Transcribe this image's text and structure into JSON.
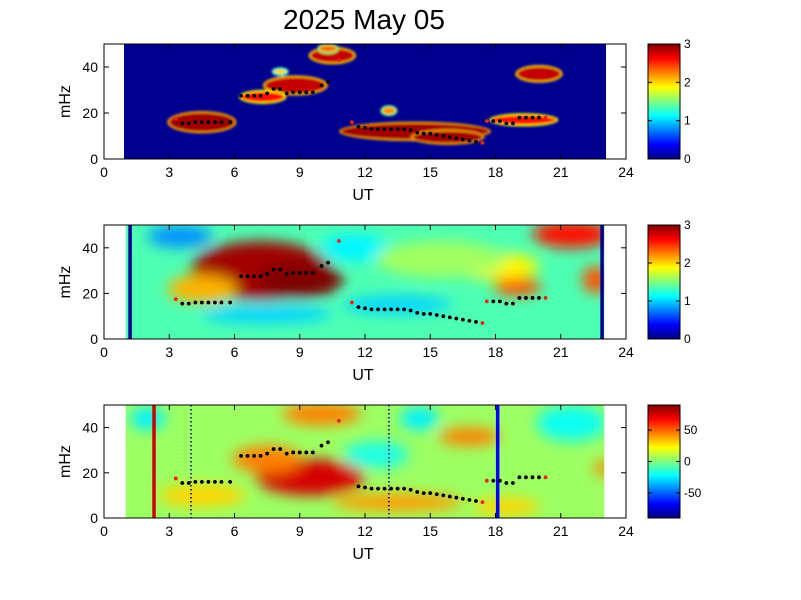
{
  "title": "2025 May 05",
  "chart_data": [
    {
      "type": "heatmap",
      "xlabel": "UT",
      "ylabel": "mHz",
      "xlim": [
        0,
        24
      ],
      "ylim": [
        0,
        50
      ],
      "xticks": [
        0,
        3,
        6,
        9,
        12,
        15,
        18,
        21,
        24
      ],
      "yticks": [
        0,
        20,
        40
      ],
      "data_range": [
        1,
        23
      ],
      "colorbar": {
        "range": [
          0,
          3
        ],
        "ticks": [
          0,
          1,
          2,
          3
        ]
      },
      "colormap": "jet",
      "background": "#00008f",
      "blobs": [
        {
          "x": 4.5,
          "y": 16,
          "rx": 1.5,
          "ry": 4,
          "v": 2.9
        },
        {
          "x": 8.8,
          "y": 32,
          "rx": 1.4,
          "ry": 3.5,
          "v": 2.8
        },
        {
          "x": 7.3,
          "y": 27,
          "rx": 1.0,
          "ry": 2.2,
          "v": 2.6
        },
        {
          "x": 10.5,
          "y": 45,
          "rx": 1.0,
          "ry": 3,
          "v": 2.8
        },
        {
          "x": 14.3,
          "y": 12,
          "rx": 3.4,
          "ry": 3.4,
          "v": 2.9
        },
        {
          "x": 15.8,
          "y": 9.5,
          "rx": 1.6,
          "ry": 2.5,
          "v": 2.9
        },
        {
          "x": 20.0,
          "y": 37,
          "rx": 1.0,
          "ry": 3,
          "v": 2.8
        },
        {
          "x": 19.3,
          "y": 17,
          "rx": 1.5,
          "ry": 2,
          "v": 2.6
        },
        {
          "x": 13.1,
          "y": 21,
          "rx": 0.3,
          "ry": 1.5,
          "v": 2.2
        },
        {
          "x": 10.3,
          "y": 48,
          "rx": 0.4,
          "ry": 1.5,
          "v": 2.3
        },
        {
          "x": 8.1,
          "y": 38,
          "rx": 0.3,
          "ry": 1,
          "v": 2.0
        }
      ],
      "vlines": [
        {
          "x": 1.0,
          "color": "#00008f"
        },
        {
          "x": 23.0,
          "color": "#00008f"
        }
      ]
    },
    {
      "type": "heatmap",
      "xlabel": "UT",
      "ylabel": "mHz",
      "xlim": [
        0,
        24
      ],
      "ylim": [
        0,
        50
      ],
      "xticks": [
        0,
        3,
        6,
        9,
        12,
        15,
        18,
        21,
        24
      ],
      "yticks": [
        0,
        20,
        40
      ],
      "data_range": [
        1,
        23
      ],
      "colorbar": {
        "range": [
          0,
          3
        ],
        "ticks": [
          0,
          1,
          2,
          3
        ]
      },
      "colormap": "jet",
      "background_value": 1.35,
      "blobs": [
        {
          "x": 7.2,
          "y": 30,
          "rx": 3.2,
          "ry": 13,
          "v": 2.9
        },
        {
          "x": 9.0,
          "y": 26,
          "rx": 2.0,
          "ry": 8,
          "v": 3.0
        },
        {
          "x": 4.5,
          "y": 22,
          "rx": 1.6,
          "ry": 6,
          "v": 2.1
        },
        {
          "x": 19.0,
          "y": 23,
          "rx": 1.1,
          "ry": 4,
          "v": 2.4
        },
        {
          "x": 21.5,
          "y": 46,
          "rx": 1.8,
          "ry": 6,
          "v": 2.6
        },
        {
          "x": 22.6,
          "y": 26,
          "rx": 0.6,
          "ry": 6,
          "v": 2.4
        },
        {
          "x": 18.0,
          "y": 32,
          "rx": 2.0,
          "ry": 6,
          "v": 1.9
        },
        {
          "x": 13.5,
          "y": 15,
          "rx": 2.5,
          "ry": 4,
          "v": 1.0
        },
        {
          "x": 3.5,
          "y": 45,
          "rx": 1.5,
          "ry": 5,
          "v": 0.8
        },
        {
          "x": 7.5,
          "y": 11,
          "rx": 3.0,
          "ry": 4,
          "v": 1.0
        },
        {
          "x": 11.5,
          "y": 40,
          "rx": 1.6,
          "ry": 6,
          "v": 1.1
        },
        {
          "x": 15.5,
          "y": 35,
          "rx": 3.0,
          "ry": 8,
          "v": 1.6
        }
      ],
      "vlines": [
        {
          "x": 1.2,
          "color": "#00008f"
        },
        {
          "x": 22.9,
          "color": "#00008f"
        }
      ]
    },
    {
      "type": "heatmap",
      "xlabel": "UT",
      "ylabel": "mHz",
      "xlim": [
        0,
        24
      ],
      "ylim": [
        0,
        50
      ],
      "xticks": [
        0,
        3,
        6,
        9,
        12,
        15,
        18,
        21,
        24
      ],
      "yticks": [
        0,
        20,
        40
      ],
      "data_range": [
        1,
        23
      ],
      "colorbar": {
        "range": [
          -90,
          90
        ],
        "ticks": [
          50,
          0,
          -50
        ]
      },
      "colormap": "jet",
      "background_value": 5,
      "blobs": [
        {
          "x": 9.5,
          "y": 18,
          "rx": 2.5,
          "ry": 8,
          "v": 75
        },
        {
          "x": 7.5,
          "y": 26,
          "rx": 1.6,
          "ry": 6,
          "v": 45
        },
        {
          "x": 10.0,
          "y": 46,
          "rx": 1.8,
          "ry": 5,
          "v": 45
        },
        {
          "x": 16.8,
          "y": 36,
          "rx": 1.4,
          "ry": 4,
          "v": 45
        },
        {
          "x": 13.5,
          "y": 7,
          "rx": 3.0,
          "ry": 4,
          "v": 40
        },
        {
          "x": 23.0,
          "y": 22,
          "rx": 0.5,
          "ry": 3,
          "v": 45
        },
        {
          "x": 4.5,
          "y": 10,
          "rx": 2.0,
          "ry": 5,
          "v": 30
        },
        {
          "x": 18.5,
          "y": 5,
          "rx": 1.5,
          "ry": 4,
          "v": 30
        },
        {
          "x": 2.0,
          "y": 44,
          "rx": 0.8,
          "ry": 5,
          "v": -25
        },
        {
          "x": 14.5,
          "y": 44,
          "rx": 0.9,
          "ry": 5,
          "v": -25
        },
        {
          "x": 21.5,
          "y": 42,
          "rx": 1.6,
          "ry": 8,
          "v": -20
        },
        {
          "x": 12.5,
          "y": 28,
          "rx": 1.5,
          "ry": 6,
          "v": -18
        }
      ],
      "vlines": [
        {
          "x": 2.3,
          "color": "#d00000",
          "style": "solid"
        },
        {
          "x": 4.0,
          "color": "#00008f",
          "style": "dotted"
        },
        {
          "x": 13.1,
          "color": "#00008f",
          "style": "dotted"
        },
        {
          "x": 18.1,
          "color": "#0000ff",
          "style": "solid"
        }
      ]
    }
  ],
  "tracks": [
    {
      "points": [
        [
          3.3,
          17.5,
          "#e21"
        ],
        [
          3.6,
          15.5,
          "#000"
        ],
        [
          3.9,
          15.5,
          "#000"
        ],
        [
          4.2,
          16,
          "#000"
        ],
        [
          4.5,
          16,
          "#000"
        ],
        [
          4.8,
          16,
          "#000"
        ],
        [
          5.1,
          16,
          "#000"
        ],
        [
          5.4,
          16,
          "#000"
        ],
        [
          5.8,
          16,
          "#000"
        ]
      ]
    },
    {
      "points": [
        [
          6.3,
          27.5,
          "#000"
        ],
        [
          6.6,
          27.5,
          "#000"
        ],
        [
          6.9,
          27.5,
          "#000"
        ],
        [
          7.2,
          27.5,
          "#000"
        ],
        [
          7.5,
          28.5,
          "#000"
        ],
        [
          7.8,
          30.5,
          "#000"
        ],
        [
          8.1,
          30.5,
          "#000"
        ],
        [
          8.4,
          28.5,
          "#000"
        ],
        [
          8.7,
          29,
          "#000"
        ],
        [
          9.0,
          29,
          "#000"
        ],
        [
          9.3,
          29,
          "#000"
        ],
        [
          9.6,
          29,
          "#000"
        ],
        [
          10.0,
          32,
          "#000"
        ],
        [
          10.3,
          33.5,
          "#000"
        ],
        [
          10.8,
          43,
          "#e21"
        ]
      ]
    },
    {
      "points": [
        [
          11.4,
          16,
          "#e21"
        ],
        [
          11.7,
          14,
          "#000"
        ],
        [
          12.0,
          13.5,
          "#000"
        ],
        [
          12.3,
          13,
          "#000"
        ],
        [
          12.6,
          13,
          "#000"
        ],
        [
          12.9,
          13,
          "#000"
        ],
        [
          13.2,
          13,
          "#000"
        ],
        [
          13.5,
          13,
          "#000"
        ],
        [
          13.8,
          13,
          "#000"
        ],
        [
          14.1,
          12.5,
          "#000"
        ],
        [
          14.4,
          11.5,
          "#000"
        ],
        [
          14.7,
          11,
          "#000"
        ],
        [
          15.0,
          11,
          "#000"
        ],
        [
          15.3,
          10.5,
          "#000"
        ],
        [
          15.6,
          10,
          "#000"
        ],
        [
          15.9,
          9.5,
          "#000"
        ],
        [
          16.2,
          9,
          "#000"
        ],
        [
          16.5,
          8.5,
          "#000"
        ],
        [
          16.8,
          8,
          "#000"
        ],
        [
          17.1,
          7.5,
          "#000"
        ],
        [
          17.4,
          7,
          "#e21"
        ]
      ]
    },
    {
      "points": [
        [
          17.6,
          16.5,
          "#e21"
        ],
        [
          17.9,
          16.5,
          "#000"
        ],
        [
          18.2,
          16.5,
          "#000"
        ],
        [
          18.5,
          15.5,
          "#000"
        ],
        [
          18.8,
          15.5,
          "#000"
        ],
        [
          19.1,
          18,
          "#000"
        ],
        [
          19.4,
          18,
          "#000"
        ],
        [
          19.7,
          18,
          "#000"
        ],
        [
          20.0,
          18,
          "#000"
        ],
        [
          20.3,
          18,
          "#e21"
        ]
      ]
    }
  ]
}
